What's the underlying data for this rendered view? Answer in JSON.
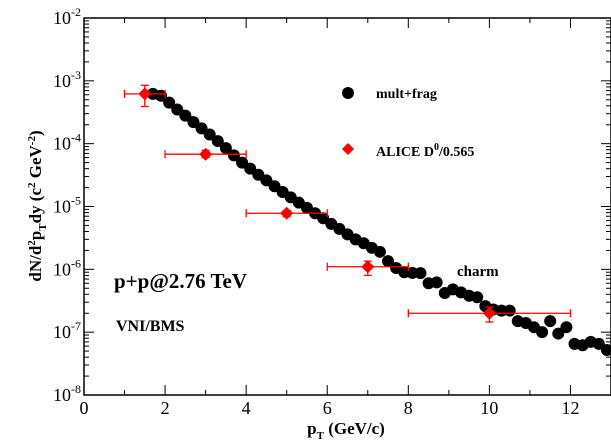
{
  "chart_data": {
    "type": "scatter",
    "xlabel_main": "p",
    "xlabel_sub": "T",
    "xlabel_rest": " (GeV/c)",
    "ylabel_parts": [
      {
        "t": "dN/d",
        "s": "n"
      },
      {
        "t": "2",
        "s": "sup"
      },
      {
        "t": "p",
        "s": "n"
      },
      {
        "t": "T",
        "s": "sub"
      },
      {
        "t": "dy (c",
        "s": "n"
      },
      {
        "t": "2",
        "s": "sup"
      },
      {
        "t": " GeV",
        "s": "n"
      },
      {
        "t": "-2",
        "s": "sup"
      },
      {
        "t": ")",
        "s": "n"
      }
    ],
    "xlim": [
      0,
      13
    ],
    "ylim": [
      1e-08,
      0.01
    ],
    "yscale": "log",
    "x_ticks": [
      "0",
      "2",
      "4",
      "6",
      "8",
      "10",
      "12"
    ],
    "y_ticks": [
      {
        "base": "10",
        "exp": "-8"
      },
      {
        "base": "10",
        "exp": "-7"
      },
      {
        "base": "10",
        "exp": "-6"
      },
      {
        "base": "10",
        "exp": "-5"
      },
      {
        "base": "10",
        "exp": "-4"
      },
      {
        "base": "10",
        "exp": "-3"
      },
      {
        "base": "10",
        "exp": "-2"
      }
    ],
    "annotations": {
      "collision": "p+p@2.76 TeV",
      "model": "VNI/BMS",
      "species": "charm"
    },
    "legend": {
      "placement": "top-right",
      "items": [
        {
          "label": "mult+frag",
          "marker": "circle",
          "color": "#000000"
        },
        {
          "label_main": "ALICE D",
          "label_sup": "0",
          "label_rest": "/0.565",
          "marker": "diamond",
          "color": "#ff0000"
        }
      ]
    },
    "series": [
      {
        "name": "mult+frag",
        "marker": "circle",
        "color": "#000000",
        "points": [
          [
            1.7,
            0.00062
          ],
          [
            1.9,
            0.00058
          ],
          [
            2.1,
            0.00045
          ],
          [
            2.3,
            0.00035
          ],
          [
            2.5,
            0.00028
          ],
          [
            2.7,
            0.00022
          ],
          [
            2.9,
            0.000175
          ],
          [
            3.1,
            0.00014
          ],
          [
            3.3,
            0.00011
          ],
          [
            3.5,
            8.5e-05
          ],
          [
            3.7,
            6.5e-05
          ],
          [
            3.9,
            5e-05
          ],
          [
            4.1,
            4e-05
          ],
          [
            4.3,
            3.2e-05
          ],
          [
            4.5,
            2.6e-05
          ],
          [
            4.7,
            2.1e-05
          ],
          [
            4.9,
            1.7e-05
          ],
          [
            5.1,
            1.4e-05
          ],
          [
            5.3,
            1.15e-05
          ],
          [
            5.5,
            9.5e-06
          ],
          [
            5.7,
            7.8e-06
          ],
          [
            5.9,
            6.5e-06
          ],
          [
            6.1,
            5.3e-06
          ],
          [
            6.3,
            4.4e-06
          ],
          [
            6.5,
            3.6e-06
          ],
          [
            6.7,
            3e-06
          ],
          [
            6.9,
            2.6e-06
          ],
          [
            7.1,
            2.2e-06
          ],
          [
            7.3,
            1.9e-06
          ],
          [
            7.5,
            1.35e-06
          ],
          [
            7.7,
            1.05e-06
          ],
          [
            7.9,
            9e-07
          ],
          [
            8.1,
            8.8e-07
          ],
          [
            8.3,
            8.7e-07
          ],
          [
            8.5,
            6e-07
          ],
          [
            8.7,
            6.2e-07
          ],
          [
            8.9,
            4.2e-07
          ],
          [
            9.1,
            4.8e-07
          ],
          [
            9.3,
            4.3e-07
          ],
          [
            9.5,
            3.8e-07
          ],
          [
            9.7,
            3.6e-07
          ],
          [
            9.9,
            2.6e-07
          ],
          [
            10.1,
            2.3e-07
          ],
          [
            10.3,
            2.2e-07
          ],
          [
            10.5,
            2.2e-07
          ],
          [
            10.7,
            1.5e-07
          ],
          [
            10.9,
            1.4e-07
          ],
          [
            11.1,
            1.2e-07
          ],
          [
            11.3,
            1e-07
          ],
          [
            11.5,
            1.5e-07
          ],
          [
            11.7,
            9.5e-08
          ],
          [
            11.9,
            1.2e-07
          ],
          [
            12.1,
            6.5e-08
          ],
          [
            12.3,
            6.2e-08
          ],
          [
            12.5,
            7e-08
          ],
          [
            12.7,
            6.5e-08
          ],
          [
            12.9,
            5.2e-08
          ]
        ]
      },
      {
        "name": "ALICE D0/0.565",
        "marker": "diamond",
        "color": "#ff0000",
        "points": [
          {
            "x": 1.5,
            "y": 0.00062,
            "xerr": 0.5,
            "ylow": 0.00039,
            "yhigh": 0.00085
          },
          {
            "x": 3.0,
            "y": 6.8e-05,
            "xerr": 1.0,
            "ylow": 6e-05,
            "yhigh": 7.8e-05
          },
          {
            "x": 5.0,
            "y": 7.8e-06,
            "xerr": 1.0,
            "ylow": 6.9e-06,
            "yhigh": 8.6e-06
          },
          {
            "x": 7.0,
            "y": 1.1e-06,
            "xerr": 1.0,
            "ylow": 8e-07,
            "yhigh": 1.35e-06
          },
          {
            "x": 10.0,
            "y": 2e-07,
            "xerr": 2.0,
            "ylow": 1.45e-07,
            "yhigh": 2.5e-07
          }
        ]
      }
    ]
  }
}
